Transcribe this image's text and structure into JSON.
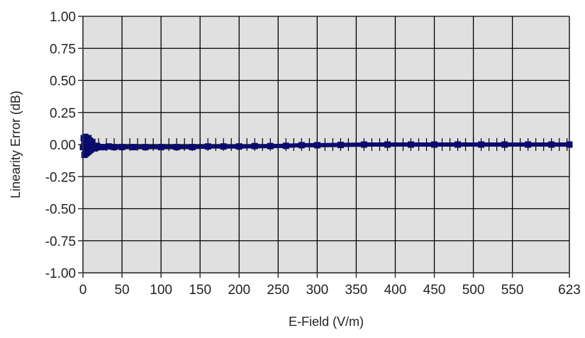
{
  "chart_data": {
    "type": "line",
    "title": "",
    "xlabel": "E-Field (V/m)",
    "ylabel": "Linearity Error (dB)",
    "xlim": [
      0,
      623
    ],
    "ylim": [
      -1.0,
      1.0
    ],
    "x_ticks": [
      0,
      50,
      100,
      150,
      200,
      250,
      300,
      350,
      400,
      450,
      500,
      550,
      623
    ],
    "y_ticks": [
      1.0,
      0.75,
      0.5,
      0.25,
      0.0,
      -0.25,
      -0.5,
      -0.75,
      -1.0
    ],
    "x_tick_labels": [
      "0",
      "50",
      "100",
      "150",
      "200",
      "250",
      "300",
      "350",
      "400",
      "450",
      "500",
      "550",
      "623"
    ],
    "y_tick_labels": [
      "1.00",
      "0.75",
      "0.50",
      "0.25",
      "0.00",
      "-0.25",
      "-0.50",
      "-0.75",
      "-1.00"
    ],
    "grid": true,
    "legend": "none",
    "colors": {
      "plot_bg": "#e0e0e0",
      "grid": "#000000",
      "series": "#0a0a6e"
    },
    "series": [
      {
        "x": [
          0,
          1,
          2,
          3,
          4,
          5,
          6,
          7,
          8,
          9,
          10,
          12,
          15,
          18,
          22,
          27,
          33,
          40,
          50,
          65,
          80,
          100,
          120,
          140,
          160,
          180,
          200,
          220,
          240,
          260,
          280,
          300,
          330,
          360,
          390,
          420,
          450,
          480,
          510,
          540,
          570,
          600,
          623
        ],
        "y": [
          -0.02,
          0.05,
          -0.08,
          0.06,
          -0.07,
          0.04,
          -0.06,
          0.05,
          -0.05,
          0.03,
          -0.04,
          0.02,
          -0.03,
          -0.01,
          -0.02,
          -0.02,
          -0.015,
          -0.02,
          -0.02,
          -0.02,
          -0.02,
          -0.02,
          -0.02,
          -0.02,
          -0.015,
          -0.015,
          -0.015,
          -0.012,
          -0.012,
          -0.01,
          -0.005,
          -0.005,
          -0.003,
          0.0,
          0.0,
          0.0,
          0.0,
          0.0,
          0.0,
          0.0,
          0.0,
          0.0,
          0.0
        ]
      }
    ]
  }
}
